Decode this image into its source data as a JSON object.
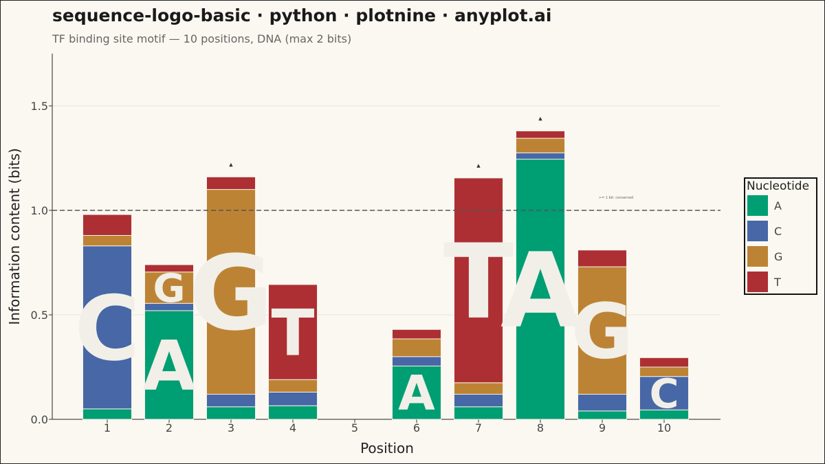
{
  "title": "sequence-logo-basic · python · plotnine · anyplot.ai",
  "subtitle": "TF binding site motif — 10 positions, DNA (max 2 bits)",
  "chart_data": {
    "type": "bar",
    "stacked": true,
    "xlabel": "Position",
    "ylabel": "Information content (bits)",
    "categories": [
      "1",
      "2",
      "3",
      "4",
      "5",
      "6",
      "7",
      "8",
      "9",
      "10"
    ],
    "ylim": [
      0,
      1.75
    ],
    "yticks": [
      "0.0",
      "0.5",
      "1.0",
      "1.5"
    ],
    "grid": true,
    "reference_line": {
      "y": 1.0,
      "style": "dashed",
      "label": ">= 1 bit: conserved"
    },
    "legend": {
      "title": "Nucleotide",
      "placement": "right"
    },
    "colors": {
      "A": "#009e73",
      "C": "#4767a6",
      "G": "#bd8334",
      "T": "#ad2f33"
    },
    "stack_order": [
      "A",
      "C",
      "G",
      "T"
    ],
    "series": [
      {
        "name": "A",
        "values": [
          0.05,
          0.52,
          0.06,
          0.065,
          0,
          0.255,
          0.06,
          1.245,
          0.04,
          0.045
        ]
      },
      {
        "name": "C",
        "values": [
          0.78,
          0.035,
          0.06,
          0.065,
          0,
          0.045,
          0.06,
          0.03,
          0.08,
          0.16
        ]
      },
      {
        "name": "G",
        "values": [
          0.05,
          0.15,
          0.98,
          0.06,
          0,
          0.085,
          0.055,
          0.07,
          0.61,
          0.045
        ]
      },
      {
        "name": "T",
        "values": [
          0.1,
          0.035,
          0.06,
          0.455,
          0,
          0.045,
          0.98,
          0.035,
          0.08,
          0.045
        ]
      }
    ],
    "letter_labels": [
      {
        "position": "1",
        "letter": "C"
      },
      {
        "position": "2",
        "letter": "A"
      },
      {
        "position": "2",
        "letter": "G"
      },
      {
        "position": "3",
        "letter": "G"
      },
      {
        "position": "4",
        "letter": "T"
      },
      {
        "position": "6",
        "letter": "A"
      },
      {
        "position": "7",
        "letter": "T"
      },
      {
        "position": "8",
        "letter": "A"
      },
      {
        "position": "9",
        "letter": "G"
      },
      {
        "position": "10",
        "letter": "C"
      }
    ],
    "conserved_markers": [
      "3",
      "7",
      "8"
    ],
    "marker_glyph": "▲"
  }
}
